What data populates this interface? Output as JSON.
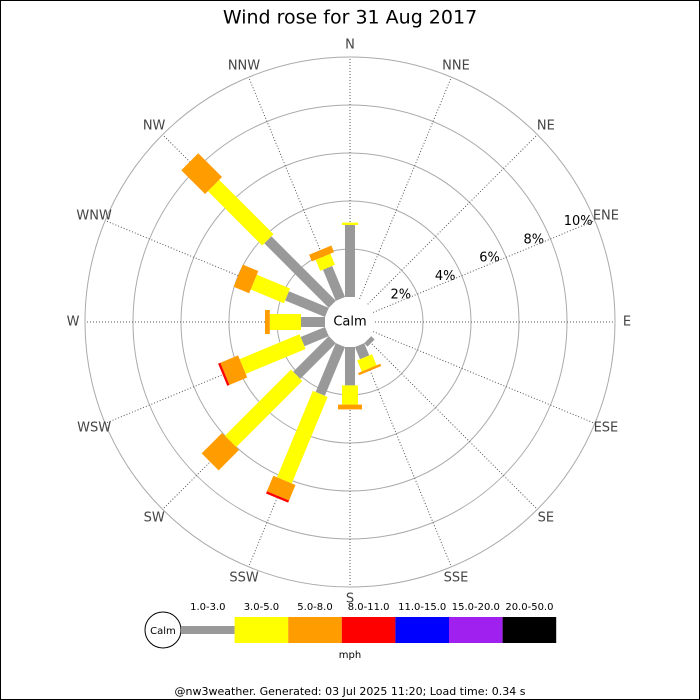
{
  "chart_data": {
    "type": "windrose",
    "title": "Wind rose for 31 Aug 2017",
    "categories": [
      "N",
      "NNE",
      "NE",
      "ENE",
      "E",
      "ESE",
      "SE",
      "SSE",
      "S",
      "SSW",
      "SW",
      "WSW",
      "W",
      "WNW",
      "NW",
      "NNW"
    ],
    "rlim": [
      0,
      10
    ],
    "rticks": [
      {
        "value": 2,
        "label": "2%"
      },
      {
        "value": 4,
        "label": "4%"
      },
      {
        "value": 6,
        "label": "6%"
      },
      {
        "value": 8,
        "label": "8%"
      },
      {
        "value": 10,
        "label": "10%"
      }
    ],
    "calm_label": "Calm",
    "unit_label": "mph",
    "series": [
      {
        "name": "1.0-3.0",
        "color": "#999999",
        "values": [
          3.0,
          0,
          0,
          0,
          0,
          0,
          0.2,
          0.55,
          1.6,
          2.2,
          2.1,
          1.1,
          1.0,
          1.8,
          3.8,
          1.4
        ]
      },
      {
        "name": "3.0-5.0",
        "color": "#ffff00",
        "values": [
          0.1,
          0,
          0,
          0,
          0,
          0,
          0,
          0.5,
          0.8,
          3.9,
          3.9,
          2.7,
          1.3,
          1.5,
          3.2,
          0.5
        ]
      },
      {
        "name": "5.0-8.0",
        "color": "#ff9c00",
        "values": [
          0,
          0,
          0,
          0,
          0,
          0,
          0,
          0.1,
          0.2,
          0.7,
          1.2,
          0.8,
          0.2,
          0.7,
          1.4,
          0.3
        ]
      },
      {
        "name": "8.0-11.0",
        "color": "#ff0000",
        "values": [
          0,
          0,
          0,
          0,
          0,
          0,
          0,
          0,
          0,
          0.1,
          0,
          0.1,
          0,
          0,
          0,
          0
        ]
      },
      {
        "name": "11.0-15.0",
        "color": "#0000ff",
        "values": [
          0,
          0,
          0,
          0,
          0,
          0,
          0,
          0,
          0,
          0,
          0,
          0,
          0,
          0,
          0,
          0
        ]
      },
      {
        "name": "15.0-20.0",
        "color": "#a020f0",
        "values": [
          0,
          0,
          0,
          0,
          0,
          0,
          0,
          0,
          0,
          0,
          0,
          0,
          0,
          0,
          0,
          0
        ]
      },
      {
        "name": "20.0-50.0",
        "color": "#000000",
        "values": [
          0,
          0,
          0,
          0,
          0,
          0,
          0,
          0,
          0,
          0,
          0,
          0,
          0,
          0,
          0,
          0
        ]
      }
    ],
    "footer": "@nw3weather. Generated: 03 Jul 2025 11:20; Load time: 0.34 s"
  }
}
